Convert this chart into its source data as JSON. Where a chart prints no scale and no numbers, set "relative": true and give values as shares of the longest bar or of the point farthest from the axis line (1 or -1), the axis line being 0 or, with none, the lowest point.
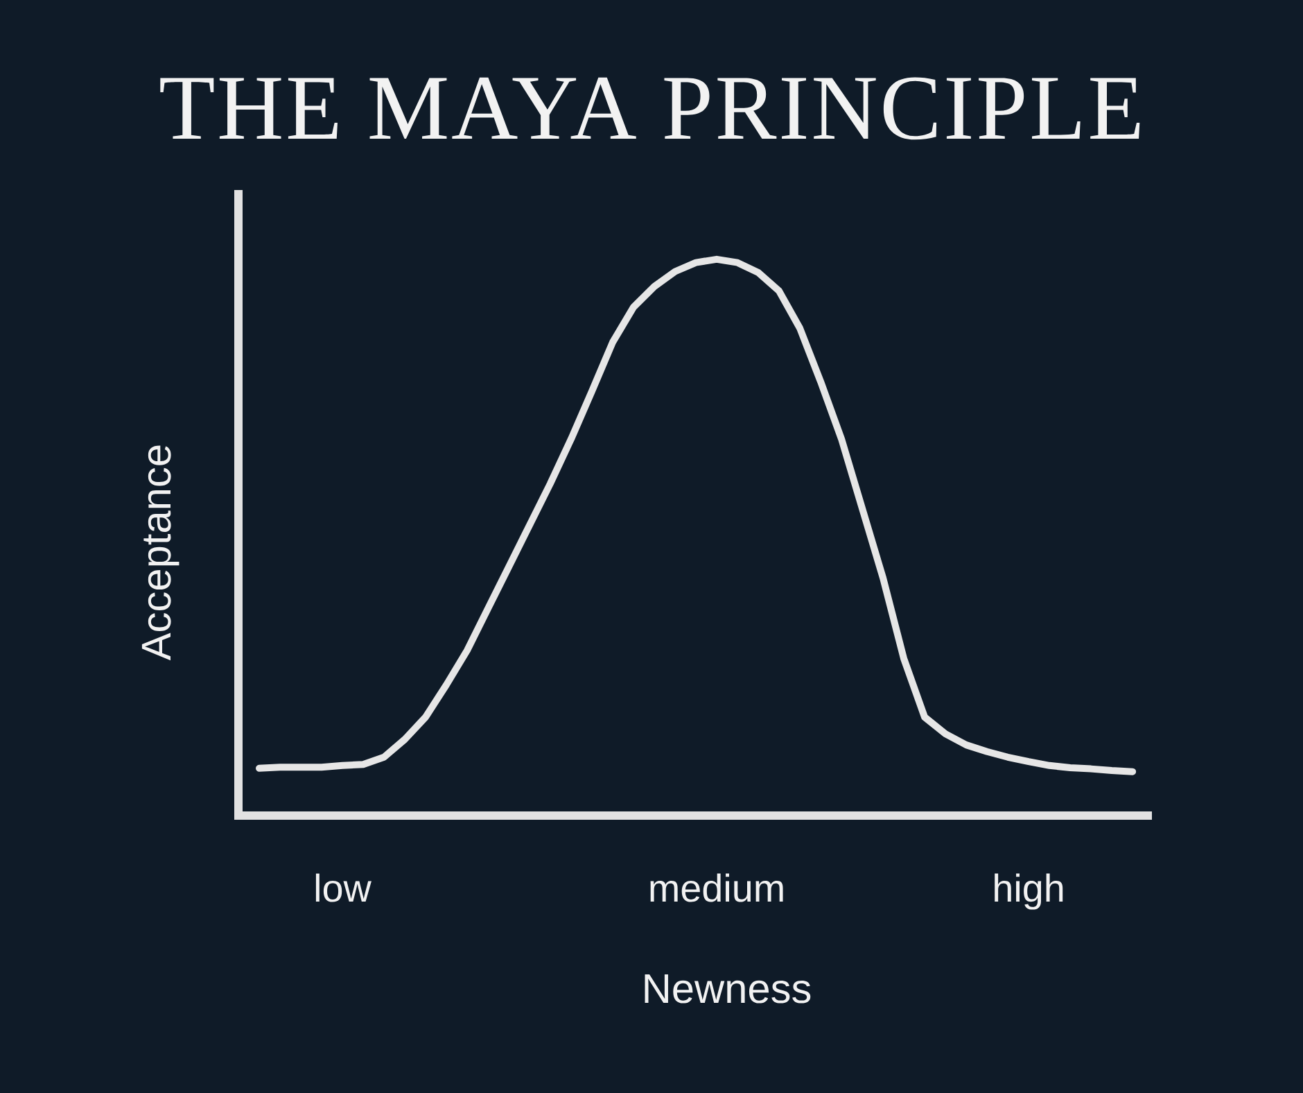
{
  "chart_data": {
    "type": "line",
    "title": "THE MAYA PRINCIPLE",
    "xlabel": "Newness",
    "ylabel": "Acceptance",
    "relative": true,
    "color": "#e6e6e6",
    "categories": [
      null,
      null,
      null,
      null,
      "low",
      null,
      null,
      null,
      null,
      null,
      null,
      null,
      null,
      null,
      null,
      null,
      null,
      null,
      null,
      null,
      null,
      null,
      "medium",
      null,
      null,
      null,
      null,
      null,
      null,
      null,
      null,
      null,
      null,
      null,
      null,
      null,
      null,
      "high",
      null,
      null,
      null,
      null,
      null
    ],
    "values": [
      0.085,
      0.087,
      0.087,
      0.087,
      0.09,
      0.092,
      0.105,
      0.137,
      0.177,
      0.235,
      0.297,
      0.372,
      0.447,
      0.522,
      0.597,
      0.677,
      0.763,
      0.851,
      0.914,
      0.951,
      0.978,
      0.994,
      1,
      0.994,
      0.976,
      0.943,
      0.876,
      0.78,
      0.677,
      0.552,
      0.427,
      0.282,
      0.177,
      0.147,
      0.127,
      0.115,
      0.105,
      0.097,
      0.09,
      0.086,
      0.084,
      0.081,
      0.079
    ]
  }
}
